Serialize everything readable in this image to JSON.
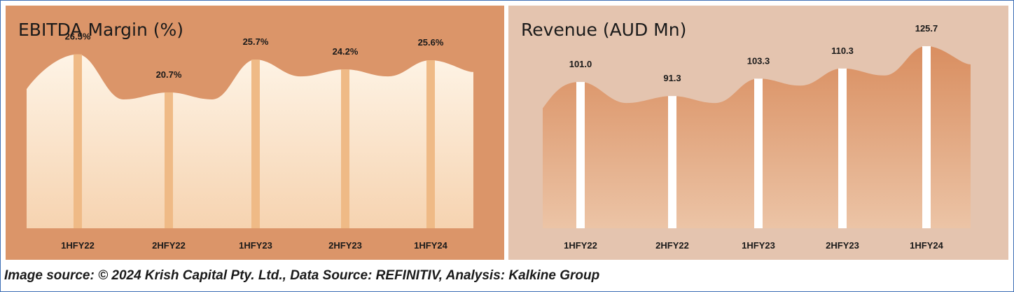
{
  "chart_data": [
    {
      "type": "area",
      "title": "EBITDA Margin (%)",
      "categories": [
        "1HFY22",
        "2HFY22",
        "1HFY23",
        "2HFY23",
        "1HFY24"
      ],
      "values": [
        26.5,
        20.7,
        25.7,
        24.2,
        25.6
      ],
      "data_labels": [
        "26.5%",
        "20.7%",
        "25.7%",
        "24.2%",
        "25.6%"
      ],
      "ylim": [
        0,
        32
      ],
      "colors": {
        "background": "#db9569",
        "area_top": "#fef4e6",
        "area_bottom": "#f6d3b0",
        "bars": "#efba86",
        "text": "#1a1a1a"
      }
    },
    {
      "type": "area",
      "title": "Revenue (AUD Mn)",
      "categories": [
        "1HFY22",
        "2HFY22",
        "1HFY23",
        "2HFY23",
        "1HFY24"
      ],
      "values": [
        101.0,
        91.3,
        103.3,
        110.3,
        125.7
      ],
      "data_labels": [
        "101.0",
        "91.3",
        "103.3",
        "110.3",
        "125.7"
      ],
      "ylim": [
        0,
        145
      ],
      "colors": {
        "background": "#e4c4af",
        "area_top": "#d98e60",
        "area_bottom": "#ecc4a6",
        "bars": "#ffffff",
        "text": "#1a1a1a"
      }
    }
  ],
  "footer": {
    "source": "Image source: © 2024 Krish Capital Pty. Ltd., Data Source: REFINITIV, Analysis: Kalkine Group"
  }
}
